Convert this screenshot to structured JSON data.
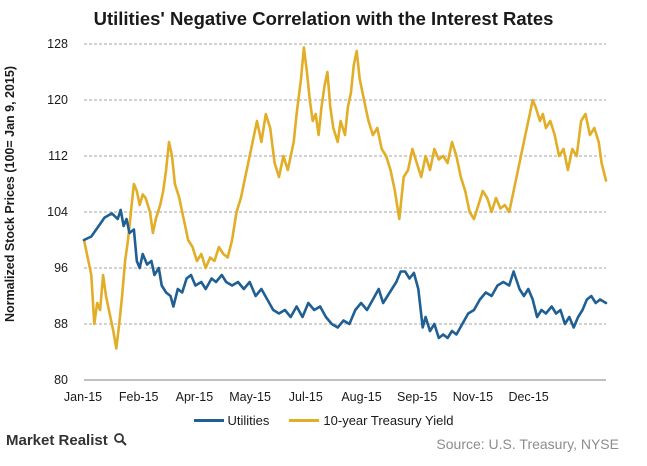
{
  "chart_data": {
    "type": "line",
    "title": "Utilities' Negative Correlation with the Interest Rates",
    "ylabel": "Normalized Stock Prices (100= Jan 9, 2015)",
    "xlabel": "",
    "x_range": [
      "2015-01-09",
      "2015-12-31"
    ],
    "x_ticks": [
      "Jan-15",
      "Feb-15",
      "Apr-15",
      "May-15",
      "Jul-15",
      "Aug-15",
      "Sep-15",
      "Nov-15",
      "Dec-15"
    ],
    "ylim": [
      80,
      128
    ],
    "y_ticks": [
      80,
      88,
      96,
      104,
      112,
      120,
      128
    ],
    "grid": "horizontal dashed",
    "legend": "bottom",
    "series": [
      {
        "name": "Utilities",
        "color": "#1f5f94",
        "points": [
          [
            "2015-01-09",
            100
          ],
          [
            "2015-01-14",
            100.5
          ],
          [
            "2015-01-19",
            102
          ],
          [
            "2015-01-23",
            103.2
          ],
          [
            "2015-01-28",
            103.8
          ],
          [
            "2015-02-01",
            103
          ],
          [
            "2015-02-03",
            104.3
          ],
          [
            "2015-02-05",
            102
          ],
          [
            "2015-02-07",
            103
          ],
          [
            "2015-02-09",
            101
          ],
          [
            "2015-02-12",
            101.5
          ],
          [
            "2015-02-14",
            97
          ],
          [
            "2015-02-16",
            96
          ],
          [
            "2015-02-18",
            98
          ],
          [
            "2015-02-21",
            96.5
          ],
          [
            "2015-02-24",
            97
          ],
          [
            "2015-02-26",
            95
          ],
          [
            "2015-03-01",
            96
          ],
          [
            "2015-03-03",
            93.5
          ],
          [
            "2015-03-06",
            92.5
          ],
          [
            "2015-03-09",
            92
          ],
          [
            "2015-03-11",
            90.5
          ],
          [
            "2015-03-14",
            93
          ],
          [
            "2015-03-17",
            92.5
          ],
          [
            "2015-03-20",
            94.5
          ],
          [
            "2015-03-23",
            95
          ],
          [
            "2015-03-26",
            93.5
          ],
          [
            "2015-03-30",
            94
          ],
          [
            "2015-04-02",
            93
          ],
          [
            "2015-04-06",
            94.5
          ],
          [
            "2015-04-09",
            94
          ],
          [
            "2015-04-13",
            95
          ],
          [
            "2015-04-16",
            94
          ],
          [
            "2015-04-20",
            93.5
          ],
          [
            "2015-04-24",
            94
          ],
          [
            "2015-04-28",
            93
          ],
          [
            "2015-05-02",
            94
          ],
          [
            "2015-05-06",
            92
          ],
          [
            "2015-05-10",
            93
          ],
          [
            "2015-05-14",
            91.5
          ],
          [
            "2015-05-18",
            90
          ],
          [
            "2015-05-22",
            89.5
          ],
          [
            "2015-05-26",
            90
          ],
          [
            "2015-05-30",
            89
          ],
          [
            "2015-06-03",
            90.5
          ],
          [
            "2015-06-07",
            89
          ],
          [
            "2015-06-11",
            91
          ],
          [
            "2015-06-15",
            90
          ],
          [
            "2015-06-19",
            90.5
          ],
          [
            "2015-06-23",
            89
          ],
          [
            "2015-06-27",
            88
          ],
          [
            "2015-07-01",
            87.5
          ],
          [
            "2015-07-05",
            88.5
          ],
          [
            "2015-07-09",
            88
          ],
          [
            "2015-07-13",
            90
          ],
          [
            "2015-07-17",
            91
          ],
          [
            "2015-07-21",
            90
          ],
          [
            "2015-07-25",
            91.5
          ],
          [
            "2015-07-29",
            93
          ],
          [
            "2015-08-01",
            91
          ],
          [
            "2015-08-04",
            92
          ],
          [
            "2015-08-07",
            93
          ],
          [
            "2015-08-10",
            94
          ],
          [
            "2015-08-13",
            95.5
          ],
          [
            "2015-08-16",
            95.5
          ],
          [
            "2015-08-19",
            94.5
          ],
          [
            "2015-08-22",
            95.3
          ],
          [
            "2015-08-25",
            93
          ],
          [
            "2015-08-28",
            87.5
          ],
          [
            "2015-08-30",
            89
          ],
          [
            "2015-09-02",
            87
          ],
          [
            "2015-09-05",
            88
          ],
          [
            "2015-09-08",
            86
          ],
          [
            "2015-09-11",
            86.5
          ],
          [
            "2015-09-14",
            86
          ],
          [
            "2015-09-17",
            87
          ],
          [
            "2015-09-20",
            86.5
          ],
          [
            "2015-09-24",
            88
          ],
          [
            "2015-09-28",
            89.5
          ],
          [
            "2015-10-02",
            90
          ],
          [
            "2015-10-06",
            91.5
          ],
          [
            "2015-10-10",
            92.5
          ],
          [
            "2015-10-14",
            92
          ],
          [
            "2015-10-18",
            93.5
          ],
          [
            "2015-10-22",
            94
          ],
          [
            "2015-10-26",
            93.5
          ],
          [
            "2015-10-29",
            95.5
          ],
          [
            "2015-11-02",
            93
          ],
          [
            "2015-11-05",
            92
          ],
          [
            "2015-11-08",
            93
          ],
          [
            "2015-11-11",
            91.5
          ],
          [
            "2015-11-14",
            89
          ],
          [
            "2015-11-17",
            90
          ],
          [
            "2015-11-20",
            89.5
          ],
          [
            "2015-11-24",
            90.5
          ],
          [
            "2015-11-27",
            89.5
          ],
          [
            "2015-11-30",
            90
          ],
          [
            "2015-12-03",
            88
          ],
          [
            "2015-12-06",
            89
          ],
          [
            "2015-12-09",
            87.5
          ],
          [
            "2015-12-12",
            89
          ],
          [
            "2015-12-15",
            90
          ],
          [
            "2015-12-18",
            91.5
          ],
          [
            "2015-12-21",
            92
          ],
          [
            "2015-12-24",
            91
          ],
          [
            "2015-12-27",
            91.5
          ],
          [
            "2015-12-31",
            91
          ]
        ]
      },
      {
        "name": "10-year Treasury Yield",
        "color": "#e2ad27",
        "points": [
          [
            "2015-01-09",
            100
          ],
          [
            "2015-01-12",
            97
          ],
          [
            "2015-01-14",
            95
          ],
          [
            "2015-01-16",
            88
          ],
          [
            "2015-01-18",
            91
          ],
          [
            "2015-01-20",
            90
          ],
          [
            "2015-01-22",
            95
          ],
          [
            "2015-01-24",
            92
          ],
          [
            "2015-01-26",
            90
          ],
          [
            "2015-01-29",
            87
          ],
          [
            "2015-01-31",
            84.5
          ],
          [
            "2015-02-02",
            88
          ],
          [
            "2015-02-04",
            92
          ],
          [
            "2015-02-06",
            97
          ],
          [
            "2015-02-08",
            100
          ],
          [
            "2015-02-10",
            104
          ],
          [
            "2015-02-12",
            108
          ],
          [
            "2015-02-14",
            107
          ],
          [
            "2015-02-16",
            105
          ],
          [
            "2015-02-18",
            106.5
          ],
          [
            "2015-02-20",
            106
          ],
          [
            "2015-02-23",
            104
          ],
          [
            "2015-02-25",
            101
          ],
          [
            "2015-02-27",
            103
          ],
          [
            "2015-03-02",
            105
          ],
          [
            "2015-03-04",
            107
          ],
          [
            "2015-03-06",
            110
          ],
          [
            "2015-03-08",
            114
          ],
          [
            "2015-03-10",
            112
          ],
          [
            "2015-03-12",
            108
          ],
          [
            "2015-03-15",
            106
          ],
          [
            "2015-03-17",
            104
          ],
          [
            "2015-03-19",
            102
          ],
          [
            "2015-03-21",
            100
          ],
          [
            "2015-03-24",
            99
          ],
          [
            "2015-03-27",
            97
          ],
          [
            "2015-03-30",
            98
          ],
          [
            "2015-04-02",
            96
          ],
          [
            "2015-04-05",
            97.5
          ],
          [
            "2015-04-08",
            97
          ],
          [
            "2015-04-11",
            99
          ],
          [
            "2015-04-14",
            98
          ],
          [
            "2015-04-17",
            97.5
          ],
          [
            "2015-04-20",
            100
          ],
          [
            "2015-04-23",
            104
          ],
          [
            "2015-04-26",
            106
          ],
          [
            "2015-04-28",
            108
          ],
          [
            "2015-05-01",
            111
          ],
          [
            "2015-05-04",
            114
          ],
          [
            "2015-05-07",
            117
          ],
          [
            "2015-05-10",
            114
          ],
          [
            "2015-05-13",
            118
          ],
          [
            "2015-05-16",
            116
          ],
          [
            "2015-05-19",
            111
          ],
          [
            "2015-05-22",
            109
          ],
          [
            "2015-05-25",
            112
          ],
          [
            "2015-05-28",
            110
          ],
          [
            "2015-06-01",
            114
          ],
          [
            "2015-06-03",
            118
          ],
          [
            "2015-06-06",
            123
          ],
          [
            "2015-06-08",
            127.5
          ],
          [
            "2015-06-10",
            124
          ],
          [
            "2015-06-12",
            120
          ],
          [
            "2015-06-14",
            117
          ],
          [
            "2015-06-16",
            118
          ],
          [
            "2015-06-18",
            115
          ],
          [
            "2015-06-20",
            119
          ],
          [
            "2015-06-22",
            122
          ],
          [
            "2015-06-24",
            124
          ],
          [
            "2015-06-26",
            119
          ],
          [
            "2015-06-28",
            116
          ],
          [
            "2015-07-01",
            114
          ],
          [
            "2015-07-03",
            117
          ],
          [
            "2015-07-06",
            115
          ],
          [
            "2015-07-08",
            119
          ],
          [
            "2015-07-10",
            121
          ],
          [
            "2015-07-12",
            125
          ],
          [
            "2015-07-14",
            127
          ],
          [
            "2015-07-16",
            123
          ],
          [
            "2015-07-18",
            121
          ],
          [
            "2015-07-20",
            119
          ],
          [
            "2015-07-22",
            117
          ],
          [
            "2015-07-25",
            115
          ],
          [
            "2015-07-28",
            116
          ],
          [
            "2015-07-31",
            113
          ],
          [
            "2015-08-03",
            112
          ],
          [
            "2015-08-06",
            110
          ],
          [
            "2015-08-09",
            107
          ],
          [
            "2015-08-12",
            103
          ],
          [
            "2015-08-15",
            109
          ],
          [
            "2015-08-18",
            110
          ],
          [
            "2015-08-21",
            113
          ],
          [
            "2015-08-24",
            111
          ],
          [
            "2015-08-27",
            109
          ],
          [
            "2015-08-30",
            112
          ],
          [
            "2015-09-02",
            110
          ],
          [
            "2015-09-05",
            113
          ],
          [
            "2015-09-08",
            111.5
          ],
          [
            "2015-09-11",
            112
          ],
          [
            "2015-09-14",
            111
          ],
          [
            "2015-09-17",
            114
          ],
          [
            "2015-09-20",
            112
          ],
          [
            "2015-09-23",
            109
          ],
          [
            "2015-09-26",
            107
          ],
          [
            "2015-09-29",
            104
          ],
          [
            "2015-10-02",
            103
          ],
          [
            "2015-10-05",
            105
          ],
          [
            "2015-10-08",
            107
          ],
          [
            "2015-10-11",
            106
          ],
          [
            "2015-10-14",
            104
          ],
          [
            "2015-10-17",
            106
          ],
          [
            "2015-10-20",
            104.5
          ],
          [
            "2015-10-23",
            105
          ],
          [
            "2015-10-26",
            104
          ],
          [
            "2015-10-29",
            107
          ],
          [
            "2015-11-01",
            110
          ],
          [
            "2015-11-04",
            113
          ],
          [
            "2015-11-07",
            116
          ],
          [
            "2015-11-09",
            118
          ],
          [
            "2015-11-11",
            120
          ],
          [
            "2015-11-13",
            119
          ],
          [
            "2015-11-16",
            117
          ],
          [
            "2015-11-18",
            118
          ],
          [
            "2015-11-20",
            116
          ],
          [
            "2015-11-23",
            117
          ],
          [
            "2015-11-26",
            115
          ],
          [
            "2015-11-29",
            112
          ],
          [
            "2015-12-02",
            113
          ],
          [
            "2015-12-05",
            110
          ],
          [
            "2015-12-08",
            113
          ],
          [
            "2015-12-11",
            112
          ],
          [
            "2015-12-14",
            117
          ],
          [
            "2015-12-17",
            118
          ],
          [
            "2015-12-20",
            115
          ],
          [
            "2015-12-23",
            116
          ],
          [
            "2015-12-26",
            114
          ],
          [
            "2015-12-28",
            111
          ],
          [
            "2015-12-31",
            108.5
          ]
        ]
      }
    ]
  },
  "legend": {
    "utilities": "Utilities",
    "treasury": "10-year Treasury Yield"
  },
  "branding": {
    "logo_text": "Market Realist",
    "source": "Source: U.S. Treasury, NYSE"
  }
}
